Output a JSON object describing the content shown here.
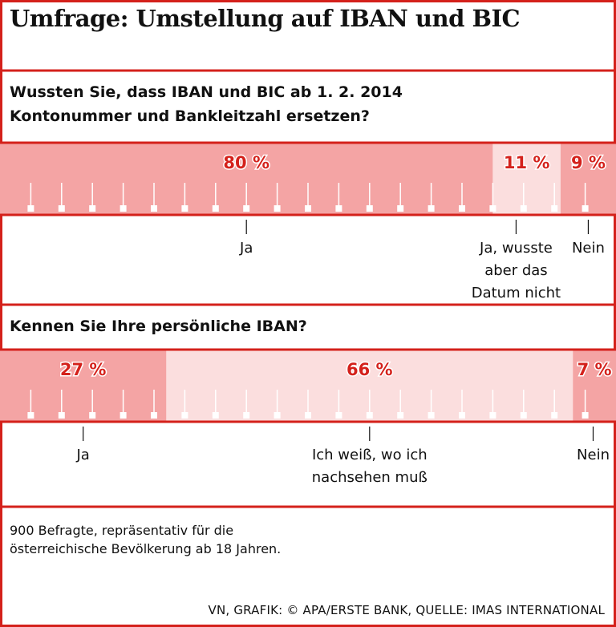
{
  "title": "Umfrage: Umstellung auf IBAN und BIC",
  "chart_data": [
    {
      "type": "stacked-bar",
      "title": "Wussten Sie, dass IBAN und BIC ab 1. 2. 2014 Kontonummer und Bankleitzahl ersetzen?",
      "categories": [
        "Ja",
        "Ja, wusste aber das Datum nicht",
        "Nein"
      ],
      "values": [
        80,
        11,
        9
      ],
      "value_labels": [
        "80 %",
        "11 %",
        "9 %"
      ],
      "colors": [
        "#f4a4a4",
        "#fbdede",
        "#f4a4a4"
      ],
      "xlim": [
        0,
        100
      ],
      "xticks": [
        5,
        10,
        15,
        20,
        25,
        30,
        35,
        40,
        45,
        50,
        55,
        60,
        65,
        70,
        75,
        80,
        85,
        90,
        95
      ]
    },
    {
      "type": "stacked-bar",
      "title": "Kennen Sie Ihre persönliche IBAN?",
      "categories": [
        "Ja",
        "Ich weiß, wo ich nachsehen muß",
        "Nein"
      ],
      "values": [
        27,
        66,
        7
      ],
      "value_labels": [
        "27 %",
        "66 %",
        "7 %"
      ],
      "colors": [
        "#f4a4a4",
        "#fbdede",
        "#f4a4a4"
      ],
      "xlim": [
        0,
        100
      ],
      "xticks": [
        5,
        10,
        15,
        20,
        25,
        30,
        35,
        40,
        45,
        50,
        55,
        60,
        65,
        70,
        75,
        80,
        85,
        90,
        95
      ]
    }
  ],
  "note": "900 Befragte, repräsentativ für die österreichische Bevölkerung ab 18 Jahren.",
  "source": "VN, GRAFIK: © APA/ERSTE BANK, QUELLE: IMAS INTERNATIONAL"
}
